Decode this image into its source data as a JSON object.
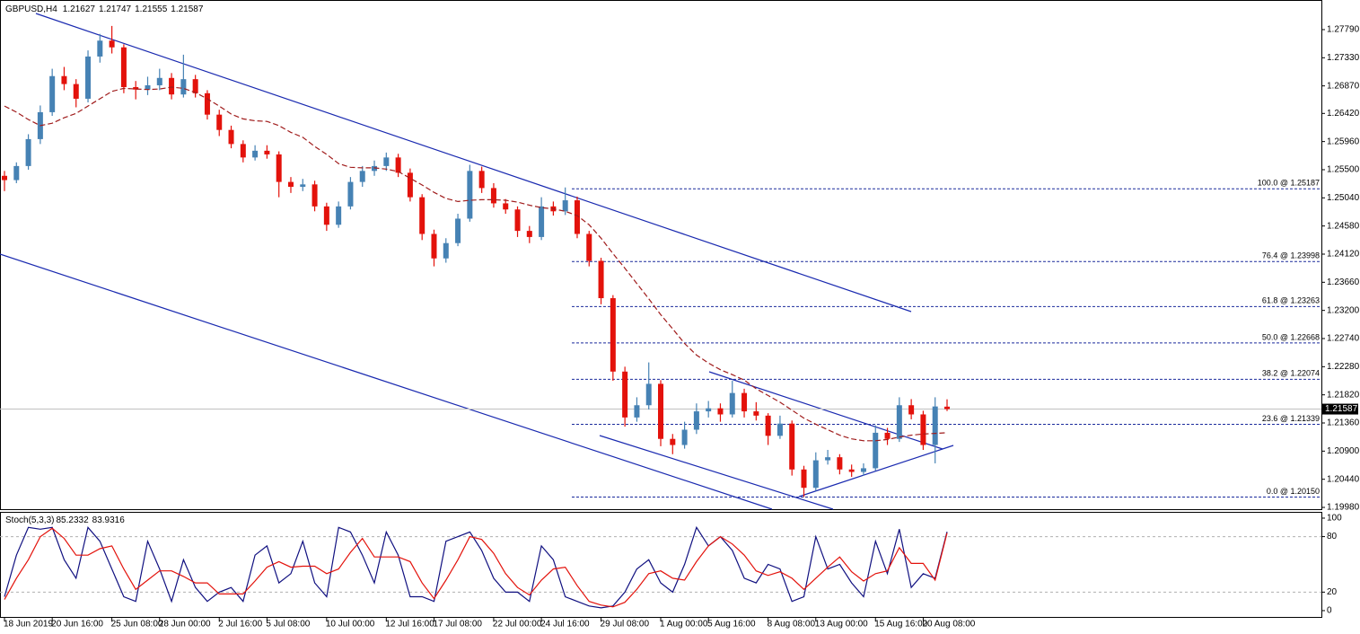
{
  "chart_data": {
    "type": "candlestick",
    "symbol": "GBPUSD,H4",
    "categories": [
      "18 Jun 2019",
      null,
      null,
      null,
      "20 Jun 16:00",
      null,
      null,
      null,
      null,
      "25 Jun 08:00",
      null,
      null,
      null,
      "28 Jun 00:00",
      null,
      null,
      null,
      null,
      "2 Jul 16:00",
      null,
      null,
      null,
      "5 Jul 08:00",
      null,
      null,
      null,
      null,
      "10 Jul 00:00",
      null,
      null,
      null,
      null,
      "12 Jul 16:00",
      null,
      null,
      null,
      "17 Jul 08:00",
      null,
      null,
      null,
      null,
      "22 Jul 00:00",
      null,
      null,
      null,
      "24 Jul 16:00",
      null,
      null,
      null,
      null,
      "29 Jul 08:00",
      null,
      null,
      null,
      null,
      "1 Aug 00:00",
      null,
      null,
      null,
      "5 Aug 16:00",
      null,
      null,
      null,
      null,
      "8 Aug 08:00",
      null,
      null,
      null,
      "13 Aug 00:00",
      null,
      null,
      null,
      null,
      "15 Aug 16:00",
      null,
      null,
      null,
      "20 Aug 08:00",
      null,
      null
    ],
    "ohlc": [
      [
        1.254,
        1.2548,
        1.2515,
        1.2533
      ],
      [
        1.2533,
        1.2562,
        1.2528,
        1.2556
      ],
      [
        1.2556,
        1.2608,
        1.255,
        1.26
      ],
      [
        1.26,
        1.2655,
        1.2592,
        1.2644
      ],
      [
        1.2644,
        1.2715,
        1.2638,
        1.2703
      ],
      [
        1.2703,
        1.2718,
        1.268,
        1.269
      ],
      [
        1.269,
        1.2698,
        1.2652,
        1.2666
      ],
      [
        1.2666,
        1.2745,
        1.266,
        1.2735
      ],
      [
        1.2735,
        1.2772,
        1.2725,
        1.2761
      ],
      [
        1.2761,
        1.2785,
        1.274,
        1.275
      ],
      [
        1.275,
        1.2755,
        1.2675,
        1.2685
      ],
      [
        1.2685,
        1.2695,
        1.2665,
        1.2681
      ],
      [
        1.2681,
        1.2702,
        1.2672,
        1.2688
      ],
      [
        1.2688,
        1.2715,
        1.268,
        1.27
      ],
      [
        1.27,
        1.2708,
        1.2665,
        1.2673
      ],
      [
        1.2673,
        1.2738,
        1.2668,
        1.2698
      ],
      [
        1.2698,
        1.2705,
        1.2668,
        1.2675
      ],
      [
        1.2675,
        1.268,
        1.2632,
        1.264
      ],
      [
        1.264,
        1.2648,
        1.2605,
        1.2615
      ],
      [
        1.2615,
        1.2622,
        1.2585,
        1.2592
      ],
      [
        1.2592,
        1.2598,
        1.2562,
        1.257
      ],
      [
        1.257,
        1.259,
        1.2565,
        1.2581
      ],
      [
        1.2581,
        1.259,
        1.2568,
        1.2575
      ],
      [
        1.2575,
        1.258,
        1.2505,
        1.253
      ],
      [
        1.253,
        1.2538,
        1.2512,
        1.2522
      ],
      [
        1.2522,
        1.2535,
        1.2515,
        1.2526
      ],
      [
        1.2526,
        1.2532,
        1.2482,
        1.249
      ],
      [
        1.249,
        1.2496,
        1.245,
        1.246
      ],
      [
        1.246,
        1.2498,
        1.2455,
        1.249
      ],
      [
        1.249,
        1.2538,
        1.2485,
        1.253
      ],
      [
        1.253,
        1.2556,
        1.2522,
        1.2548
      ],
      [
        1.2548,
        1.2565,
        1.254,
        1.2556
      ],
      [
        1.2556,
        1.2578,
        1.2548,
        1.257
      ],
      [
        1.257,
        1.2576,
        1.2538,
        1.2545
      ],
      [
        1.2545,
        1.2552,
        1.2498,
        1.2505
      ],
      [
        1.2505,
        1.251,
        1.2435,
        1.2445
      ],
      [
        1.2445,
        1.2452,
        1.2392,
        1.2405
      ],
      [
        1.2405,
        1.2438,
        1.2398,
        1.243
      ],
      [
        1.243,
        1.2478,
        1.2425,
        1.247
      ],
      [
        1.247,
        1.2558,
        1.2465,
        1.2548
      ],
      [
        1.2548,
        1.2555,
        1.2512,
        1.252
      ],
      [
        1.252,
        1.2528,
        1.2488,
        1.2495
      ],
      [
        1.2495,
        1.2502,
        1.2478,
        1.2485
      ],
      [
        1.2485,
        1.249,
        1.244,
        1.245
      ],
      [
        1.245,
        1.2458,
        1.243,
        1.244
      ],
      [
        1.244,
        1.2505,
        1.2435,
        1.249
      ],
      [
        1.249,
        1.2498,
        1.2475,
        1.2482
      ],
      [
        1.2482,
        1.2521,
        1.2476,
        1.25
      ],
      [
        1.25,
        1.2506,
        1.2438,
        1.2445
      ],
      [
        1.2445,
        1.245,
        1.2392,
        1.2401
      ],
      [
        1.2401,
        1.2406,
        1.233,
        1.234
      ],
      [
        1.234,
        1.2345,
        1.2205,
        1.222
      ],
      [
        1.222,
        1.2228,
        1.213,
        1.2145
      ],
      [
        1.2145,
        1.2178,
        1.2138,
        1.2165
      ],
      [
        1.2165,
        1.2235,
        1.2158,
        1.22
      ],
      [
        1.22,
        1.2206,
        1.2098,
        1.211
      ],
      [
        1.211,
        1.2118,
        1.2085,
        1.21
      ],
      [
        1.21,
        1.2138,
        1.2094,
        1.2125
      ],
      [
        1.2125,
        1.2168,
        1.2118,
        1.2155
      ],
      [
        1.2155,
        1.2172,
        1.2145,
        1.216
      ],
      [
        1.216,
        1.2168,
        1.2138,
        1.215
      ],
      [
        1.215,
        1.2205,
        1.2145,
        1.2185
      ],
      [
        1.2185,
        1.2192,
        1.2145,
        1.2155
      ],
      [
        1.2155,
        1.217,
        1.214,
        1.2148
      ],
      [
        1.2148,
        1.2152,
        1.21,
        1.2115
      ],
      [
        1.2115,
        1.2148,
        1.211,
        1.2135
      ],
      [
        1.2135,
        1.214,
        1.205,
        1.206
      ],
      [
        1.206,
        1.2066,
        1.2015,
        1.203
      ],
      [
        1.203,
        1.2088,
        1.2025,
        1.2075
      ],
      [
        1.2075,
        1.2092,
        1.2068,
        1.208
      ],
      [
        1.208,
        1.2085,
        1.2052,
        1.206
      ],
      [
        1.206,
        1.2068,
        1.2048,
        1.2056
      ],
      [
        1.2056,
        1.207,
        1.205,
        1.2062
      ],
      [
        1.2062,
        1.2132,
        1.2058,
        1.212
      ],
      [
        1.212,
        1.2128,
        1.21,
        1.211
      ],
      [
        1.211,
        1.2178,
        1.2105,
        1.2165
      ],
      [
        1.2165,
        1.2175,
        1.2142,
        1.215
      ],
      [
        1.215,
        1.2156,
        1.2092,
        1.21
      ],
      [
        1.21,
        1.2178,
        1.207,
        1.2163
      ],
      [
        1.21627,
        1.21747,
        1.21555,
        1.21587
      ]
    ],
    "up_color": "#4682b4",
    "down_color": "#e3120b",
    "ma": {
      "color": "#a01c1c",
      "values": [
        1.2654,
        1.2644,
        1.2632,
        1.2622,
        1.2626,
        1.2635,
        1.2642,
        1.2654,
        1.2666,
        1.2678,
        1.2683,
        1.2682,
        1.2681,
        1.2682,
        1.2685,
        1.2683,
        1.2676,
        1.2666,
        1.2654,
        1.2641,
        1.2633,
        1.263,
        1.2629,
        1.2622,
        1.2611,
        1.2603,
        1.2588,
        1.2575,
        1.256,
        1.2554,
        1.2553,
        1.2553,
        1.2551,
        1.2547,
        1.2536,
        1.2525,
        1.2513,
        1.2503,
        1.2498,
        1.25,
        1.2501,
        1.2501,
        1.25,
        1.2497,
        1.2492,
        1.2488,
        1.2486,
        1.2482,
        1.2475,
        1.246,
        1.2438,
        1.2413,
        1.2389,
        1.2364,
        1.2339,
        1.2313,
        1.229,
        1.2266,
        1.2247,
        1.2234,
        1.2223,
        1.2215,
        1.2206,
        1.2192,
        1.2181,
        1.217,
        1.2157,
        1.2144,
        1.2134,
        1.2125,
        1.2116,
        1.211,
        1.2107,
        1.2107,
        1.2109,
        1.2113,
        1.2116,
        1.2118,
        1.2119,
        1.212
      ]
    },
    "ylim": [
      1.19951,
      1.28274
    ],
    "yticks": [
      {
        "value": 1.2779,
        "label": "1.27790"
      },
      {
        "value": 1.2733,
        "label": "1.27330"
      },
      {
        "value": 1.2687,
        "label": "1.26870"
      },
      {
        "value": 1.2642,
        "label": "1.26420"
      },
      {
        "value": 1.2596,
        "label": "1.25960"
      },
      {
        "value": 1.255,
        "label": "1.25500"
      },
      {
        "value": 1.2504,
        "label": "1.25040"
      },
      {
        "value": 1.2458,
        "label": "1.24580"
      },
      {
        "value": 1.2412,
        "label": "1.24120"
      },
      {
        "value": 1.2366,
        "label": "1.23660"
      },
      {
        "value": 1.232,
        "label": "1.23200"
      },
      {
        "value": 1.2274,
        "label": "1.22740"
      },
      {
        "value": 1.2228,
        "label": "1.22280"
      },
      {
        "value": 1.2182,
        "label": "1.21820"
      },
      {
        "value": 1.2136,
        "label": "1.21360"
      },
      {
        "value": 1.209,
        "label": "1.20900"
      },
      {
        "value": 1.2044,
        "label": "1.20440"
      },
      {
        "value": 1.1998,
        "label": "1.19980"
      }
    ],
    "fib_color": "#1a2a9c",
    "fib_levels": [
      {
        "value": 1.25187,
        "label": "100.0 @ 1.25187"
      },
      {
        "value": 1.23998,
        "label": "76.4 @ 1.23998"
      },
      {
        "value": 1.23263,
        "label": "61.8 @ 1.23263"
      },
      {
        "value": 1.22668,
        "label": "50.0 @ 1.22668"
      },
      {
        "value": 1.22074,
        "label": "38.2 @ 1.22074"
      },
      {
        "value": 1.21339,
        "label": "23.6 @ 1.21339"
      },
      {
        "value": 1.2015,
        "label": "0.0 @ 1.20150"
      }
    ],
    "stoch": {
      "title": "Stoch(5,3,3)",
      "ylim": [
        -7.8,
        105.8
      ],
      "yticks": [
        0,
        20,
        80,
        100
      ],
      "main": {
        "color": "#101080",
        "values": [
          15,
          60,
          90,
          88,
          90,
          55,
          35,
          90,
          75,
          45,
          15,
          10,
          75,
          45,
          10,
          55,
          25,
          10,
          20,
          25,
          10,
          60,
          70,
          30,
          40,
          75,
          30,
          15,
          90,
          85,
          60,
          30,
          85,
          60,
          15,
          15,
          10,
          75,
          80,
          85,
          65,
          35,
          20,
          20,
          10,
          70,
          55,
          15,
          10,
          5,
          3,
          5,
          20,
          45,
          55,
          30,
          20,
          50,
          90,
          70,
          80,
          65,
          35,
          30,
          50,
          45,
          10,
          15,
          80,
          45,
          50,
          30,
          15,
          75,
          40,
          88,
          25,
          40,
          35,
          85.2332
        ]
      },
      "signal": {
        "color": "#e3120b",
        "values": [
          12,
          35,
          55,
          80,
          89,
          78,
          60,
          60,
          67,
          70,
          45,
          23,
          33,
          43,
          43,
          37,
          30,
          30,
          18,
          18,
          18,
          32,
          47,
          53,
          47,
          48,
          48,
          40,
          45,
          63,
          78,
          58,
          58,
          58,
          53,
          30,
          13,
          33,
          55,
          80,
          77,
          62,
          40,
          25,
          17,
          33,
          45,
          47,
          27,
          10,
          6,
          4,
          9,
          23,
          40,
          43,
          35,
          33,
          53,
          70,
          80,
          72,
          60,
          43,
          38,
          42,
          35,
          23,
          35,
          47,
          58,
          42,
          32,
          40,
          43,
          68,
          51,
          51,
          33,
          83.9316
        ]
      }
    }
  }
}
